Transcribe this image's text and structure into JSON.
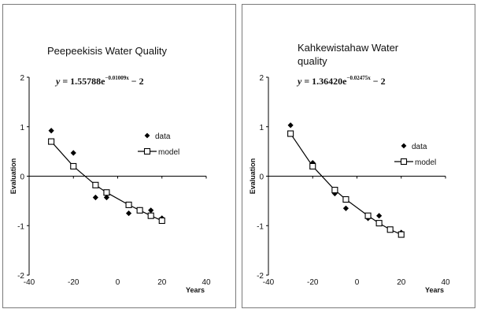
{
  "chart_data": [
    {
      "type": "scatter",
      "title_lines": [
        "Peepeekisis Water Quality"
      ],
      "equation": {
        "lhs": "y",
        "coef": "1.55788",
        "exponent": "−0.01009x",
        "tail": "− 2"
      },
      "xlabel": "Years",
      "ylabel": "Evaluation",
      "xlim": [
        -40,
        40
      ],
      "ylim": [
        -2,
        2
      ],
      "xticks": [
        "-40",
        "-20",
        "0",
        "20",
        "40"
      ],
      "yticks": [
        "-2",
        "-1",
        "0",
        "1",
        "2"
      ],
      "legend_position": "right",
      "series": [
        {
          "name": "data",
          "marker": "diamond",
          "color": "#000000",
          "x": [
            -30,
            -20,
            -10,
            -5,
            5,
            10,
            15,
            20
          ],
          "y": [
            0.92,
            0.47,
            -0.43,
            -0.43,
            -0.75,
            -0.68,
            -0.69,
            -0.85
          ]
        },
        {
          "name": "model",
          "marker": "square-open",
          "line": true,
          "color": "#000000",
          "x": [
            -30,
            -20,
            -10,
            -5,
            5,
            10,
            15,
            20
          ],
          "y": [
            0.7,
            0.2,
            -0.18,
            -0.33,
            -0.58,
            -0.69,
            -0.8,
            -0.9
          ]
        }
      ]
    },
    {
      "type": "scatter",
      "title_lines": [
        "Kahkewistahaw Water",
        "quality"
      ],
      "equation": {
        "lhs": "y",
        "coef": "1.36420",
        "exponent": "−0.02475x",
        "tail": "− 2"
      },
      "xlabel": "Years",
      "ylabel": "Evaluation",
      "xlim": [
        -40,
        40
      ],
      "ylim": [
        -2,
        2
      ],
      "xticks": [
        "-40",
        "-20",
        "0",
        "20",
        "40"
      ],
      "yticks": [
        "-2",
        "-1",
        "0",
        "1",
        "2"
      ],
      "legend_position": "right",
      "series": [
        {
          "name": "data",
          "marker": "diamond",
          "color": "#000000",
          "x": [
            -30,
            -20,
            -10,
            -5,
            5,
            10,
            15,
            20
          ],
          "y": [
            1.03,
            0.27,
            -0.35,
            -0.65,
            -0.85,
            -0.8,
            -1.08,
            -1.14
          ]
        },
        {
          "name": "model",
          "marker": "square-open",
          "line": true,
          "color": "#000000",
          "x": [
            -30,
            -20,
            -10,
            -5,
            5,
            10,
            15,
            20
          ],
          "y": [
            0.86,
            0.2,
            -0.28,
            -0.47,
            -0.8,
            -0.95,
            -1.08,
            -1.18
          ]
        }
      ]
    }
  ]
}
